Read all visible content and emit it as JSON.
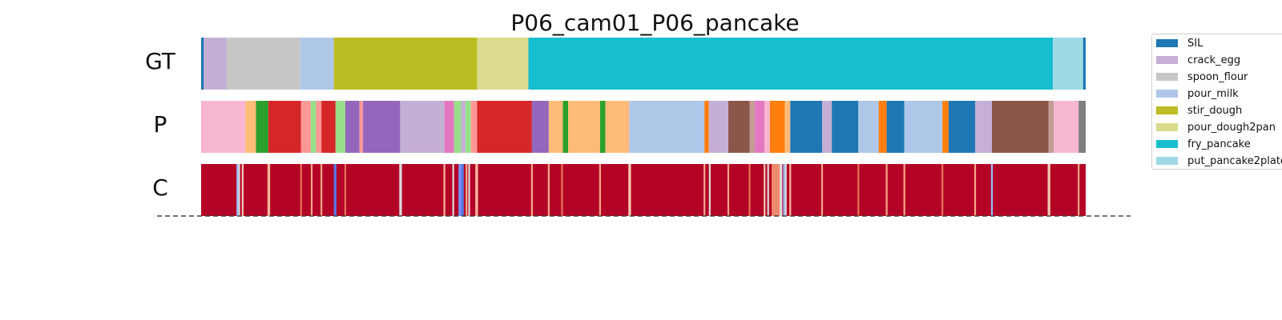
{
  "chart_data": {
    "type": "segmentation",
    "title": "P06_cam01_P06_pancake",
    "x_range": [
      0,
      1
    ],
    "rows": [
      {
        "label": "GT",
        "kind": "segments",
        "segments": [
          {
            "start": 0.0,
            "end": 0.003,
            "class": "SIL"
          },
          {
            "start": 0.003,
            "end": 0.029,
            "class": "crack_egg"
          },
          {
            "start": 0.029,
            "end": 0.112,
            "class": "spoon_flour"
          },
          {
            "start": 0.112,
            "end": 0.15,
            "class": "pour_milk"
          },
          {
            "start": 0.15,
            "end": 0.312,
            "class": "stir_dough"
          },
          {
            "start": 0.312,
            "end": 0.37,
            "class": "pour_dough2pan"
          },
          {
            "start": 0.37,
            "end": 0.963,
            "class": "fry_pancake"
          },
          {
            "start": 0.963,
            "end": 0.997,
            "class": "put_pancake2plate"
          },
          {
            "start": 0.997,
            "end": 1.0,
            "class": "SIL"
          }
        ]
      },
      {
        "label": "P",
        "kind": "segments",
        "segments": [
          {
            "start": 0.0,
            "end": 0.05,
            "color": "#f7b6d2"
          },
          {
            "start": 0.05,
            "end": 0.062,
            "color": "#ffbb78"
          },
          {
            "start": 0.062,
            "end": 0.076,
            "color": "#2ca02c"
          },
          {
            "start": 0.076,
            "end": 0.113,
            "color": "#d62728"
          },
          {
            "start": 0.113,
            "end": 0.124,
            "color": "#ff9896"
          },
          {
            "start": 0.124,
            "end": 0.13,
            "color": "#98df8a"
          },
          {
            "start": 0.13,
            "end": 0.136,
            "color": "#ff9896"
          },
          {
            "start": 0.136,
            "end": 0.152,
            "color": "#d62728"
          },
          {
            "start": 0.152,
            "end": 0.163,
            "color": "#98df8a"
          },
          {
            "start": 0.163,
            "end": 0.179,
            "color": "#9467bd"
          },
          {
            "start": 0.179,
            "end": 0.183,
            "color": "#ff9896"
          },
          {
            "start": 0.183,
            "end": 0.225,
            "color": "#9467bd"
          },
          {
            "start": 0.225,
            "end": 0.275,
            "color": "#c5b0d5"
          },
          {
            "start": 0.275,
            "end": 0.286,
            "color": "#e377c2"
          },
          {
            "start": 0.286,
            "end": 0.294,
            "color": "#98df8a"
          },
          {
            "start": 0.294,
            "end": 0.299,
            "color": "#c5b0d5"
          },
          {
            "start": 0.299,
            "end": 0.305,
            "color": "#98df8a"
          },
          {
            "start": 0.305,
            "end": 0.312,
            "color": "#ff9896"
          },
          {
            "start": 0.312,
            "end": 0.374,
            "color": "#d62728"
          },
          {
            "start": 0.374,
            "end": 0.393,
            "color": "#9467bd"
          },
          {
            "start": 0.393,
            "end": 0.409,
            "color": "#ffbb78"
          },
          {
            "start": 0.409,
            "end": 0.415,
            "color": "#2ca02c"
          },
          {
            "start": 0.415,
            "end": 0.451,
            "color": "#ffbb78"
          },
          {
            "start": 0.451,
            "end": 0.457,
            "color": "#2ca02c"
          },
          {
            "start": 0.457,
            "end": 0.484,
            "color": "#ffbb78"
          },
          {
            "start": 0.484,
            "end": 0.569,
            "color": "#aec7e8"
          },
          {
            "start": 0.569,
            "end": 0.574,
            "color": "#ff7f0e"
          },
          {
            "start": 0.574,
            "end": 0.596,
            "color": "#c5b0d5"
          },
          {
            "start": 0.596,
            "end": 0.62,
            "color": "#8c564b"
          },
          {
            "start": 0.62,
            "end": 0.626,
            "color": "#c49c94"
          },
          {
            "start": 0.626,
            "end": 0.637,
            "color": "#e377c2"
          },
          {
            "start": 0.637,
            "end": 0.643,
            "color": "#f7b6d2"
          },
          {
            "start": 0.643,
            "end": 0.66,
            "color": "#ff7f0e"
          },
          {
            "start": 0.66,
            "end": 0.666,
            "color": "#ffbb78"
          },
          {
            "start": 0.666,
            "end": 0.702,
            "color": "#1f77b4"
          },
          {
            "start": 0.702,
            "end": 0.713,
            "color": "#c5b0d5"
          },
          {
            "start": 0.713,
            "end": 0.743,
            "color": "#1f77b4"
          },
          {
            "start": 0.743,
            "end": 0.766,
            "color": "#aec7e8"
          },
          {
            "start": 0.766,
            "end": 0.775,
            "color": "#ff7f0e"
          },
          {
            "start": 0.775,
            "end": 0.795,
            "color": "#1f77b4"
          },
          {
            "start": 0.795,
            "end": 0.838,
            "color": "#aec7e8"
          },
          {
            "start": 0.838,
            "end": 0.845,
            "color": "#ff7f0e"
          },
          {
            "start": 0.845,
            "end": 0.875,
            "color": "#1f77b4"
          },
          {
            "start": 0.875,
            "end": 0.894,
            "color": "#c5b0d5"
          },
          {
            "start": 0.894,
            "end": 0.958,
            "color": "#8c564b"
          },
          {
            "start": 0.958,
            "end": 0.964,
            "color": "#c49c94"
          },
          {
            "start": 0.964,
            "end": 0.992,
            "color": "#f7b6d2"
          },
          {
            "start": 0.992,
            "end": 1.0,
            "color": "#7f7f7f"
          }
        ]
      },
      {
        "label": "C",
        "kind": "confidence",
        "base_color": "#b40426",
        "segments": [
          {
            "start": 0.04,
            "end": 0.042,
            "color": "#9bbcff"
          },
          {
            "start": 0.042,
            "end": 0.044,
            "color": "#dddcdc"
          },
          {
            "start": 0.046,
            "end": 0.048,
            "color": "#f3c7b1"
          },
          {
            "start": 0.075,
            "end": 0.078,
            "color": "#f7b89c"
          },
          {
            "start": 0.112,
            "end": 0.114,
            "color": "#e7745b"
          },
          {
            "start": 0.124,
            "end": 0.126,
            "color": "#f7a889"
          },
          {
            "start": 0.135,
            "end": 0.137,
            "color": "#f7a889"
          },
          {
            "start": 0.15,
            "end": 0.153,
            "color": "#5977e3"
          },
          {
            "start": 0.162,
            "end": 0.164,
            "color": "#e7745b"
          },
          {
            "start": 0.224,
            "end": 0.227,
            "color": "#dddcdc"
          },
          {
            "start": 0.274,
            "end": 0.276,
            "color": "#f7b89c"
          },
          {
            "start": 0.284,
            "end": 0.286,
            "color": "#dddcdc"
          },
          {
            "start": 0.291,
            "end": 0.294,
            "color": "#7396f5"
          },
          {
            "start": 0.294,
            "end": 0.297,
            "color": "#5977e3"
          },
          {
            "start": 0.299,
            "end": 0.301,
            "color": "#f7a889"
          },
          {
            "start": 0.302,
            "end": 0.304,
            "color": "#dddcdc"
          },
          {
            "start": 0.31,
            "end": 0.313,
            "color": "#f7b89c"
          },
          {
            "start": 0.373,
            "end": 0.375,
            "color": "#f7a889"
          },
          {
            "start": 0.392,
            "end": 0.394,
            "color": "#f7a889"
          },
          {
            "start": 0.407,
            "end": 0.409,
            "color": "#e7745b"
          },
          {
            "start": 0.45,
            "end": 0.452,
            "color": "#f7a889"
          },
          {
            "start": 0.483,
            "end": 0.486,
            "color": "#f3c7b1"
          },
          {
            "start": 0.568,
            "end": 0.57,
            "color": "#f7a889"
          },
          {
            "start": 0.574,
            "end": 0.576,
            "color": "#dddcdc"
          },
          {
            "start": 0.595,
            "end": 0.597,
            "color": "#f7a889"
          },
          {
            "start": 0.619,
            "end": 0.621,
            "color": "#e7745b"
          },
          {
            "start": 0.636,
            "end": 0.638,
            "color": "#f3c7b1"
          },
          {
            "start": 0.64,
            "end": 0.642,
            "color": "#dddcdc"
          },
          {
            "start": 0.645,
            "end": 0.654,
            "color": "#f08a6c"
          },
          {
            "start": 0.654,
            "end": 0.657,
            "color": "#dddcdc"
          },
          {
            "start": 0.658,
            "end": 0.66,
            "color": "#9bbcff"
          },
          {
            "start": 0.66,
            "end": 0.662,
            "color": "#dddcdc"
          },
          {
            "start": 0.665,
            "end": 0.667,
            "color": "#f7b89c"
          },
          {
            "start": 0.701,
            "end": 0.703,
            "color": "#f7a889"
          },
          {
            "start": 0.742,
            "end": 0.744,
            "color": "#e7745b"
          },
          {
            "start": 0.774,
            "end": 0.776,
            "color": "#f7a889"
          },
          {
            "start": 0.794,
            "end": 0.796,
            "color": "#f7a889"
          },
          {
            "start": 0.837,
            "end": 0.839,
            "color": "#e7745b"
          },
          {
            "start": 0.874,
            "end": 0.876,
            "color": "#f7a889"
          },
          {
            "start": 0.893,
            "end": 0.895,
            "color": "#9bbcff"
          },
          {
            "start": 0.957,
            "end": 0.96,
            "color": "#f3c7b1"
          },
          {
            "start": 0.991,
            "end": 0.993,
            "color": "#f7a889"
          }
        ]
      }
    ],
    "legend": {
      "placement": "right",
      "entries": [
        {
          "label": "SIL",
          "color": "#1f77b4"
        },
        {
          "label": "crack_egg",
          "color": "#c5b0d5"
        },
        {
          "label": "spoon_flour",
          "color": "#c7c7c7"
        },
        {
          "label": "pour_milk",
          "color": "#aec7e8"
        },
        {
          "label": "stir_dough",
          "color": "#bcbd22"
        },
        {
          "label": "pour_dough2pan",
          "color": "#dbdb8d"
        },
        {
          "label": "fry_pancake",
          "color": "#17becf"
        },
        {
          "label": "put_pancake2plate",
          "color": "#9edae5"
        }
      ]
    },
    "baseline": "dashed"
  }
}
